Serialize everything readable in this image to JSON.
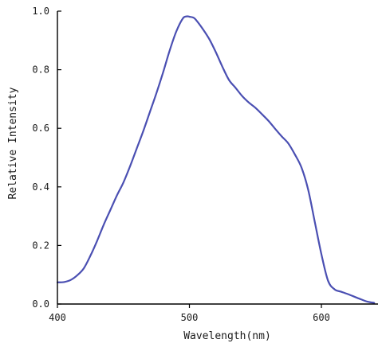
{
  "chart_data": {
    "type": "line",
    "title": "",
    "xlabel": "Wavelength(nm)",
    "ylabel": "Relative Intensity",
    "xlim": [
      400,
      645
    ],
    "ylim": [
      0.0,
      1.0
    ],
    "x_ticks": [
      400,
      500,
      600
    ],
    "y_ticks": [
      0.0,
      0.2,
      0.4,
      0.6,
      0.8,
      1.0
    ],
    "x_tick_labels": [
      "400",
      "500",
      "600"
    ],
    "y_tick_labels": [
      "0.0",
      "0.2",
      "0.4",
      "0.6",
      "0.8",
      "1.0"
    ],
    "grid": false,
    "line_color": "#4a4fb2",
    "series": [
      {
        "x": [
          400,
          405,
          410,
          415,
          420,
          425,
          430,
          435,
          440,
          445,
          450,
          455,
          460,
          465,
          470,
          475,
          480,
          485,
          490,
          495,
          498,
          500,
          503,
          505,
          510,
          515,
          520,
          525,
          530,
          535,
          540,
          545,
          550,
          555,
          560,
          565,
          570,
          575,
          580,
          585,
          590,
          595,
          600,
          605,
          610,
          615,
          620,
          625,
          630,
          635,
          640
        ],
        "y": [
          0.074,
          0.075,
          0.082,
          0.098,
          0.122,
          0.165,
          0.215,
          0.27,
          0.32,
          0.37,
          0.415,
          0.47,
          0.53,
          0.59,
          0.655,
          0.72,
          0.79,
          0.865,
          0.93,
          0.975,
          0.982,
          0.981,
          0.978,
          0.97,
          0.94,
          0.905,
          0.86,
          0.81,
          0.765,
          0.738,
          0.71,
          0.688,
          0.67,
          0.648,
          0.625,
          0.598,
          0.572,
          0.548,
          0.51,
          0.465,
          0.39,
          0.28,
          0.17,
          0.08,
          0.05,
          0.042,
          0.034,
          0.025,
          0.016,
          0.008,
          0.004
        ]
      }
    ]
  }
}
